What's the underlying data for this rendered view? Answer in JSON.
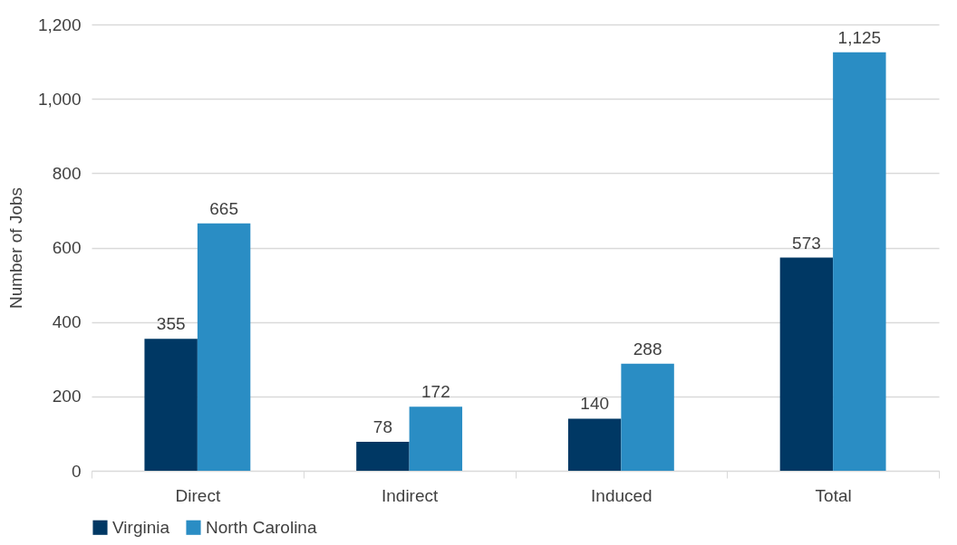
{
  "chart_data": {
    "type": "bar",
    "ylabel": "Number of Jobs",
    "categories": [
      "Direct",
      "Indirect",
      "Induced",
      "Total"
    ],
    "series": [
      {
        "name": "Virginia",
        "color": "#003864",
        "values": [
          355,
          78,
          140,
          573
        ],
        "value_labels": [
          "355",
          "78",
          "140",
          "573"
        ]
      },
      {
        "name": "North Carolina",
        "color": "#2a8dc4",
        "values": [
          665,
          172,
          288,
          1125
        ],
        "value_labels": [
          "665",
          "172",
          "288",
          "1,125"
        ]
      }
    ],
    "ylim": [
      0,
      1200
    ],
    "yticks": [
      0,
      200,
      400,
      600,
      800,
      {
        "value": 1000,
        "label": "1,000"
      },
      {
        "value": 1200,
        "label": "1,200"
      }
    ],
    "grid": "y",
    "legend": "bottom"
  }
}
